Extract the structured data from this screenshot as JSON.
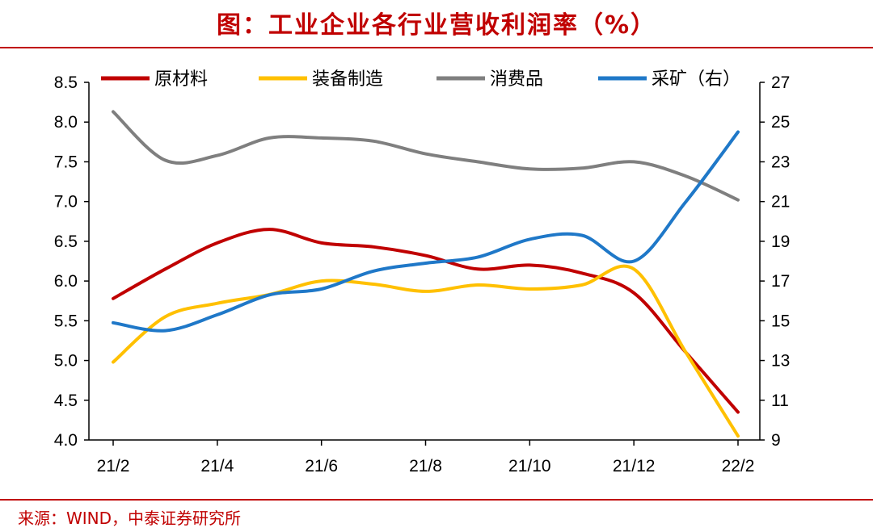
{
  "title": "图：工业企业各行业营收利润率（%）",
  "source": "来源：WIND，中泰证券研究所",
  "chart_data": {
    "type": "line",
    "x": [
      "21/2",
      "21/3",
      "21/4",
      "21/5",
      "21/6",
      "21/7",
      "21/8",
      "21/9",
      "21/10",
      "21/11",
      "21/12",
      "22/1",
      "22/2"
    ],
    "x_tick_labels": [
      "21/2",
      "21/4",
      "21/6",
      "21/8",
      "21/10",
      "21/12",
      "22/2"
    ],
    "y_left_ticks": [
      "8.5",
      "8.0",
      "7.5",
      "7.0",
      "6.5",
      "6.0",
      "5.5",
      "5.0",
      "4.5",
      "4.0"
    ],
    "y_right_ticks": [
      "27",
      "25",
      "23",
      "21",
      "19",
      "17",
      "15",
      "13",
      "11",
      "9"
    ],
    "ylim_left": [
      4.0,
      8.5
    ],
    "ylim_right": [
      9,
      27
    ],
    "series": [
      {
        "name": "原材料",
        "axis": "left",
        "color": "#c00000",
        "values": [
          5.78,
          6.15,
          6.48,
          6.65,
          6.48,
          6.43,
          6.32,
          6.15,
          6.2,
          6.1,
          5.85,
          5.1,
          4.35
        ]
      },
      {
        "name": "装备制造",
        "axis": "left",
        "color": "#ffc000",
        "values": [
          4.98,
          5.55,
          5.72,
          5.83,
          6.0,
          5.96,
          5.87,
          5.95,
          5.9,
          5.95,
          6.15,
          5.1,
          4.05
        ]
      },
      {
        "name": "消费品",
        "axis": "left",
        "color": "#7f7f7f",
        "values": [
          8.13,
          7.52,
          7.58,
          7.8,
          7.8,
          7.76,
          7.6,
          7.5,
          7.41,
          7.42,
          7.5,
          7.32,
          7.02
        ]
      },
      {
        "name": "采矿（右）",
        "axis": "right",
        "color": "#1f78c8",
        "values": [
          14.9,
          14.5,
          15.3,
          16.3,
          16.6,
          17.5,
          17.9,
          18.2,
          19.1,
          19.3,
          18.0,
          21.0,
          24.5
        ]
      }
    ]
  }
}
